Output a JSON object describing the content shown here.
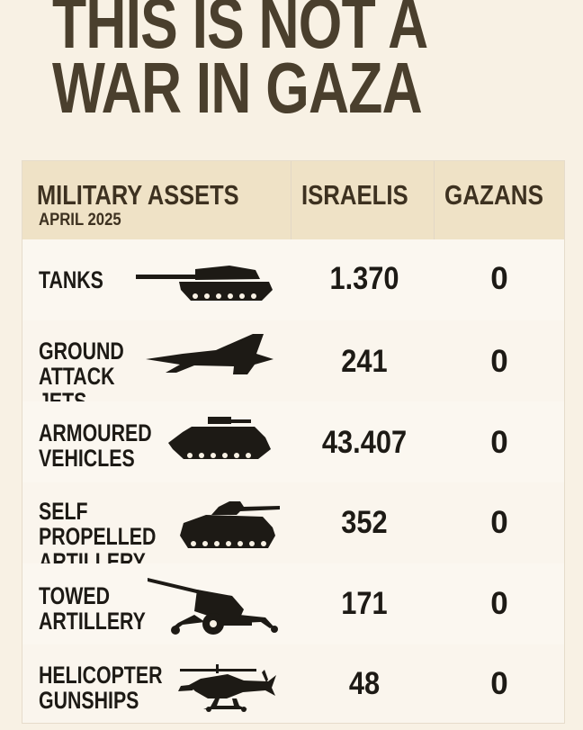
{
  "headline": {
    "line1": "THIS IS NOT A",
    "line2": "WAR IN GAZA"
  },
  "table": {
    "header": {
      "assets": "MILITARY ASSETS",
      "date": "APRIL 2025",
      "israelis": "ISRAELIS",
      "gazans": "GAZANS"
    },
    "rows": [
      {
        "label": "TANKS",
        "icon": "tank-icon",
        "israelis": "1.370",
        "gazans": "0"
      },
      {
        "label": "GROUND\nATTACK JETS",
        "icon": "jet-icon",
        "israelis": "241",
        "gazans": "0"
      },
      {
        "label": "ARMOURED\nVEHICLES",
        "icon": "armoured-vehicle-icon",
        "israelis": "43.407",
        "gazans": "0"
      },
      {
        "label": "SELF PROPELLED\nARTILLERY",
        "icon": "self-propelled-artillery-icon",
        "israelis": "352",
        "gazans": "0"
      },
      {
        "label": "TOWED\nARTILLERY",
        "icon": "towed-artillery-icon",
        "israelis": "171",
        "gazans": "0"
      },
      {
        "label": "HELICOPTER\nGUNSHIPS",
        "icon": "helicopter-icon",
        "israelis": "48",
        "gazans": "0"
      }
    ]
  }
}
